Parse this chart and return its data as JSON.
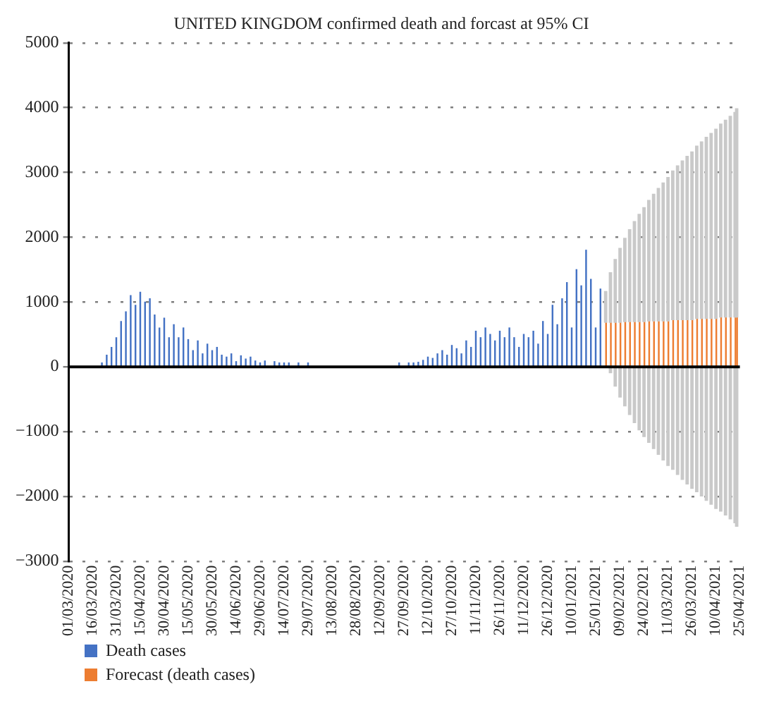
{
  "chart_data": {
    "type": "bar",
    "title": "UNITED KINGDOM confirmed death and forcast at 95% CI",
    "series": [
      {
        "name": "Death cases",
        "color": "#4472c4",
        "x": [
          "2020-03-01",
          "2020-03-04",
          "2020-03-07",
          "2020-03-10",
          "2020-03-13",
          "2020-03-16",
          "2020-03-19",
          "2020-03-22",
          "2020-03-25",
          "2020-03-28",
          "2020-03-31",
          "2020-04-03",
          "2020-04-06",
          "2020-04-09",
          "2020-04-12",
          "2020-04-15",
          "2020-04-18",
          "2020-04-21",
          "2020-04-24",
          "2020-04-27",
          "2020-04-30",
          "2020-05-03",
          "2020-05-06",
          "2020-05-09",
          "2020-05-12",
          "2020-05-15",
          "2020-05-18",
          "2020-05-21",
          "2020-05-24",
          "2020-05-27",
          "2020-05-30",
          "2020-06-02",
          "2020-06-05",
          "2020-06-08",
          "2020-06-11",
          "2020-06-14",
          "2020-06-17",
          "2020-06-20",
          "2020-06-23",
          "2020-06-26",
          "2020-06-29",
          "2020-07-02",
          "2020-07-05",
          "2020-07-08",
          "2020-07-11",
          "2020-07-14",
          "2020-07-17",
          "2020-07-20",
          "2020-07-23",
          "2020-07-26",
          "2020-07-29",
          "2020-08-01",
          "2020-08-04",
          "2020-08-07",
          "2020-08-10",
          "2020-08-13",
          "2020-08-16",
          "2020-08-19",
          "2020-08-22",
          "2020-08-25",
          "2020-08-28",
          "2020-08-31",
          "2020-09-03",
          "2020-09-06",
          "2020-09-09",
          "2020-09-12",
          "2020-09-15",
          "2020-09-18",
          "2020-09-21",
          "2020-09-24",
          "2020-09-27",
          "2020-09-30",
          "2020-10-03",
          "2020-10-06",
          "2020-10-09",
          "2020-10-12",
          "2020-10-15",
          "2020-10-18",
          "2020-10-21",
          "2020-10-24",
          "2020-10-27",
          "2020-10-30",
          "2020-11-02",
          "2020-11-05",
          "2020-11-08",
          "2020-11-11",
          "2020-11-14",
          "2020-11-17",
          "2020-11-20",
          "2020-11-23",
          "2020-11-26",
          "2020-11-29",
          "2020-12-02",
          "2020-12-05",
          "2020-12-08",
          "2020-12-11",
          "2020-12-14",
          "2020-12-17",
          "2020-12-20",
          "2020-12-23",
          "2020-12-26",
          "2020-12-29",
          "2021-01-01",
          "2021-01-04",
          "2021-01-07",
          "2021-01-10",
          "2021-01-13",
          "2021-01-16",
          "2021-01-19",
          "2021-01-22",
          "2021-01-25",
          "2021-01-28"
        ],
        "values": [
          0,
          0,
          0,
          0,
          0,
          0,
          0,
          60,
          180,
          300,
          450,
          700,
          850,
          1100,
          950,
          1150,
          1000,
          1050,
          800,
          600,
          750,
          450,
          650,
          450,
          600,
          420,
          250,
          400,
          200,
          350,
          250,
          300,
          180,
          150,
          200,
          80,
          170,
          120,
          150,
          90,
          60,
          90,
          0,
          80,
          60,
          60,
          60,
          0,
          60,
          0,
          60,
          0,
          0,
          0,
          0,
          0,
          0,
          0,
          0,
          0,
          0,
          0,
          0,
          0,
          0,
          0,
          0,
          0,
          0,
          60,
          0,
          60,
          60,
          70,
          100,
          150,
          130,
          200,
          250,
          180,
          330,
          280,
          200,
          400,
          300,
          550,
          450,
          600,
          500,
          400,
          550,
          450,
          600,
          450,
          300,
          500,
          450,
          550,
          350,
          700,
          500,
          950,
          650,
          1050,
          1300,
          600,
          1500,
          1250,
          1800,
          1350,
          600,
          1200
        ]
      },
      {
        "name": "Forecast (death cases)",
        "color": "#ed7d31",
        "x": [
          "2021-01-31",
          "2021-02-03",
          "2021-02-06",
          "2021-02-09",
          "2021-02-12",
          "2021-02-15",
          "2021-02-18",
          "2021-02-21",
          "2021-02-24",
          "2021-02-27",
          "2021-03-02",
          "2021-03-05",
          "2021-03-08",
          "2021-03-11",
          "2021-03-14",
          "2021-03-17",
          "2021-03-20",
          "2021-03-23",
          "2021-03-26",
          "2021-03-29",
          "2021-04-01",
          "2021-04-04",
          "2021-04-07",
          "2021-04-10",
          "2021-04-13",
          "2021-04-16",
          "2021-04-19",
          "2021-04-22",
          "2021-04-23"
        ],
        "values": [
          680,
          680,
          680,
          680,
          690,
          690,
          690,
          690,
          690,
          700,
          700,
          700,
          700,
          700,
          720,
          720,
          720,
          720,
          720,
          740,
          740,
          740,
          740,
          740,
          760,
          760,
          760,
          760,
          760
        ],
        "errors": [
          490,
          780,
          985,
          1155,
          1300,
          1435,
          1560,
          1670,
          1775,
          1875,
          1970,
          2060,
          2145,
          2230,
          2310,
          2390,
          2465,
          2535,
          2605,
          2675,
          2740,
          2810,
          2870,
          2935,
          2995,
          3055,
          3115,
          3175,
          3230
        ]
      }
    ],
    "xlim": [
      "2020-03-01",
      "2021-04-25"
    ],
    "xticks": [
      {
        "value": "2020-03-01",
        "label": "01/03/2020"
      },
      {
        "value": "2020-03-16",
        "label": "16/03/2020"
      },
      {
        "value": "2020-03-31",
        "label": "31/03/2020"
      },
      {
        "value": "2020-04-15",
        "label": "15/04/2020"
      },
      {
        "value": "2020-04-30",
        "label": "30/04/2020"
      },
      {
        "value": "2020-05-15",
        "label": "15/05/2020"
      },
      {
        "value": "2020-05-30",
        "label": "30/05/2020"
      },
      {
        "value": "2020-06-14",
        "label": "14/06/2020"
      },
      {
        "value": "2020-06-29",
        "label": "29/06/2020"
      },
      {
        "value": "2020-07-14",
        "label": "14/07/2020"
      },
      {
        "value": "2020-07-29",
        "label": "29/07/2020"
      },
      {
        "value": "2020-08-13",
        "label": "13/08/2020"
      },
      {
        "value": "2020-08-28",
        "label": "28/08/2020"
      },
      {
        "value": "2020-09-12",
        "label": "12/09/2020"
      },
      {
        "value": "2020-09-27",
        "label": "27/09/2020"
      },
      {
        "value": "2020-10-12",
        "label": "12/10/2020"
      },
      {
        "value": "2020-10-27",
        "label": "27/10/2020"
      },
      {
        "value": "2020-11-11",
        "label": "11/11/2020"
      },
      {
        "value": "2020-11-26",
        "label": "26/11/2020"
      },
      {
        "value": "2020-12-11",
        "label": "11/12/2020"
      },
      {
        "value": "2020-12-26",
        "label": "26/12/2020"
      },
      {
        "value": "2021-01-10",
        "label": "10/01/2021"
      },
      {
        "value": "2021-01-25",
        "label": "25/01/2021"
      },
      {
        "value": "2021-02-09",
        "label": "09/02/2021"
      },
      {
        "value": "2021-02-24",
        "label": "24/02/2021"
      },
      {
        "value": "2021-03-11",
        "label": "11/03/2021"
      },
      {
        "value": "2021-03-26",
        "label": "26/03/2021"
      },
      {
        "value": "2021-04-10",
        "label": "10/04/2021"
      },
      {
        "value": "2021-04-25",
        "label": "25/04/2021"
      }
    ],
    "ylim": [
      -3000,
      5000
    ],
    "yticks": [
      -3000,
      -2000,
      -1000,
      0,
      1000,
      2000,
      3000,
      4000,
      5000
    ],
    "ref_lines": [
      {
        "axis": "y",
        "value": 0,
        "color": "#000000"
      }
    ],
    "grid": "y",
    "legend": "bottom left"
  }
}
